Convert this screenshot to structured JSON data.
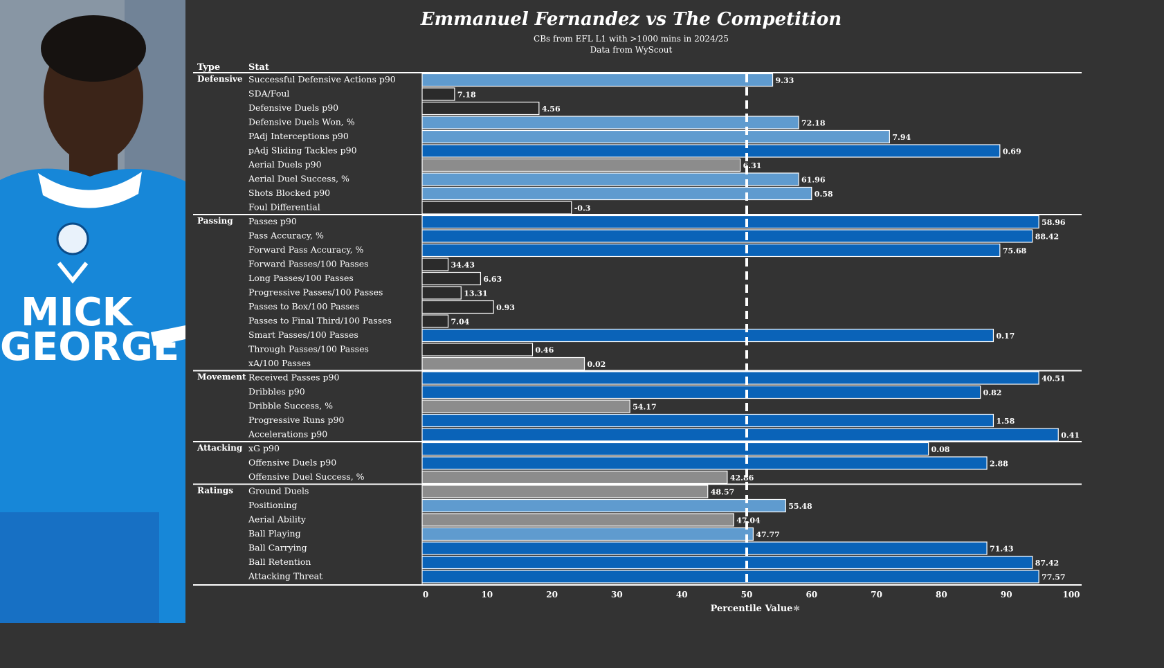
{
  "title": "Emmanuel Fernandez vs The Competition",
  "subtitle_1": "CBs from  EFL L1  with >1000 mins in 2024/25",
  "subtitle_2": "Data from WyScout",
  "header_type": "Type",
  "header_stat": "Stat",
  "photo": {
    "sponsor_line1": "MICK",
    "sponsor_line2": "GEORGE"
  },
  "colors": {
    "background": "#333333",
    "elite": "#0a63b8",
    "above_average": "#5f9bcf",
    "average": "#8c8c8c",
    "below_average": "#2b2b2b",
    "median_line": "#ffffff"
  },
  "chart_data": {
    "type": "bar",
    "orientation": "horizontal",
    "title": "Emmanuel Fernandez vs The Competition",
    "xlabel": "Percentile Value",
    "xlim": [
      0,
      100
    ],
    "xticks": [
      0,
      10,
      20,
      30,
      40,
      50,
      60,
      70,
      80,
      90,
      100
    ],
    "median_reference": 50,
    "groups": [
      {
        "type": "Defensive",
        "stats": [
          {
            "stat": "Successful Defensive Actions p90",
            "percentile": 54,
            "value_label": "9.33",
            "tier": "above_average"
          },
          {
            "stat": "SDA/Foul",
            "percentile": 5,
            "value_label": "7.18",
            "tier": "below_average"
          },
          {
            "stat": "Defensive Duels p90",
            "percentile": 18,
            "value_label": "4.56",
            "tier": "below_average"
          },
          {
            "stat": "Defensive Duels Won, %",
            "percentile": 58,
            "value_label": "72.18",
            "tier": "above_average"
          },
          {
            "stat": "PAdj Interceptions p90",
            "percentile": 72,
            "value_label": "7.94",
            "tier": "above_average"
          },
          {
            "stat": "pAdj Sliding Tackles p90",
            "percentile": 89,
            "value_label": "0.69",
            "tier": "elite"
          },
          {
            "stat": "Aerial Duels p90",
            "percentile": 49,
            "value_label": "6.31",
            "tier": "average"
          },
          {
            "stat": "Aerial Duel Success, %",
            "percentile": 58,
            "value_label": "61.96",
            "tier": "above_average"
          },
          {
            "stat": "Shots Blocked p90",
            "percentile": 60,
            "value_label": "0.58",
            "tier": "above_average"
          },
          {
            "stat": "Foul Differential",
            "percentile": 23,
            "value_label": "-0.3",
            "tier": "below_average"
          }
        ]
      },
      {
        "type": "Passing",
        "stats": [
          {
            "stat": "Passes p90",
            "percentile": 95,
            "value_label": "58.96",
            "tier": "elite"
          },
          {
            "stat": "Pass Accuracy, %",
            "percentile": 94,
            "value_label": "88.42",
            "tier": "elite"
          },
          {
            "stat": "Forward Pass Accuracy, %",
            "percentile": 89,
            "value_label": "75.68",
            "tier": "elite"
          },
          {
            "stat": "Forward Passes/100 Passes",
            "percentile": 4,
            "value_label": "34.43",
            "tier": "below_average"
          },
          {
            "stat": "Long Passes/100 Passes",
            "percentile": 9,
            "value_label": "6.63",
            "tier": "below_average"
          },
          {
            "stat": "Progressive Passes/100 Passes",
            "percentile": 6,
            "value_label": "13.31",
            "tier": "below_average"
          },
          {
            "stat": "Passes to Box/100 Passes",
            "percentile": 11,
            "value_label": "0.93",
            "tier": "below_average"
          },
          {
            "stat": "Passes to Final Third/100 Passes",
            "percentile": 4,
            "value_label": "7.04",
            "tier": "below_average"
          },
          {
            "stat": "Smart Passes/100 Passes",
            "percentile": 88,
            "value_label": "0.17",
            "tier": "elite"
          },
          {
            "stat": "Through Passes/100 Passes",
            "percentile": 17,
            "value_label": "0.46",
            "tier": "below_average"
          },
          {
            "stat": "xA/100 Passes",
            "percentile": 25,
            "value_label": "0.02",
            "tier": "average"
          }
        ]
      },
      {
        "type": "Movement",
        "stats": [
          {
            "stat": "Received Passes p90",
            "percentile": 95,
            "value_label": "40.51",
            "tier": "elite"
          },
          {
            "stat": "Dribbles p90",
            "percentile": 86,
            "value_label": "0.82",
            "tier": "elite"
          },
          {
            "stat": "Dribble Success, %",
            "percentile": 32,
            "value_label": "54.17",
            "tier": "average"
          },
          {
            "stat": "Progressive Runs p90",
            "percentile": 88,
            "value_label": "1.58",
            "tier": "elite"
          },
          {
            "stat": "Accelerations p90",
            "percentile": 98,
            "value_label": "0.41",
            "tier": "elite"
          }
        ]
      },
      {
        "type": "Attacking",
        "stats": [
          {
            "stat": "xG p90",
            "percentile": 78,
            "value_label": "0.08",
            "tier": "elite"
          },
          {
            "stat": "Offensive Duels p90",
            "percentile": 87,
            "value_label": "2.88",
            "tier": "elite"
          },
          {
            "stat": "Offensive Duel Success, %",
            "percentile": 47,
            "value_label": "42.86",
            "tier": "average"
          }
        ]
      },
      {
        "type": "Ratings",
        "stats": [
          {
            "stat": "Ground Duels",
            "percentile": 44,
            "value_label": "48.57",
            "tier": "average"
          },
          {
            "stat": "Positioning",
            "percentile": 56,
            "value_label": "55.48",
            "tier": "above_average"
          },
          {
            "stat": "Aerial Ability",
            "percentile": 48,
            "value_label": "47.04",
            "tier": "average"
          },
          {
            "stat": "Ball Playing",
            "percentile": 51,
            "value_label": "47.77",
            "tier": "above_average"
          },
          {
            "stat": "Ball Carrying",
            "percentile": 87,
            "value_label": "71.43",
            "tier": "elite"
          },
          {
            "stat": "Ball Retention",
            "percentile": 94,
            "value_label": "87.42",
            "tier": "elite"
          },
          {
            "stat": "Attacking Threat",
            "percentile": 95,
            "value_label": "77.57",
            "tier": "elite"
          }
        ]
      }
    ]
  }
}
